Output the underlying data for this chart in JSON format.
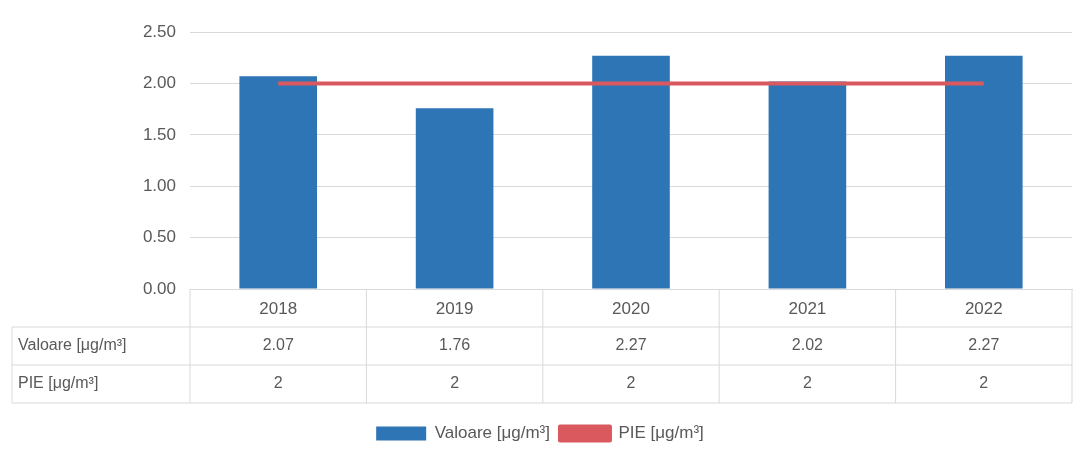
{
  "chart_data": {
    "type": "bar",
    "categories": [
      "2018",
      "2019",
      "2020",
      "2021",
      "2022"
    ],
    "series": [
      {
        "name": "Valoare [μg/m³]",
        "color": "#2e75b6",
        "values": [
          2.07,
          1.76,
          2.27,
          2.02,
          2.27
        ]
      },
      {
        "name": "PIE [μg/m³]",
        "type": "line",
        "color": "#d9595f",
        "values": [
          2,
          2,
          2,
          2,
          2
        ],
        "marker": "none"
      }
    ],
    "ylim": [
      0,
      2.5
    ],
    "yticks": [
      {
        "value": 0,
        "label": "0.00"
      },
      {
        "value": 0.5,
        "label": "0.50"
      },
      {
        "value": 1,
        "label": "1.00"
      },
      {
        "value": 1.5,
        "label": "1.50"
      },
      {
        "value": 2,
        "label": "2.00"
      },
      {
        "value": 2.5,
        "label": "2.50"
      }
    ],
    "grid": "y",
    "legend": "bottom",
    "data_labels": true
  }
}
